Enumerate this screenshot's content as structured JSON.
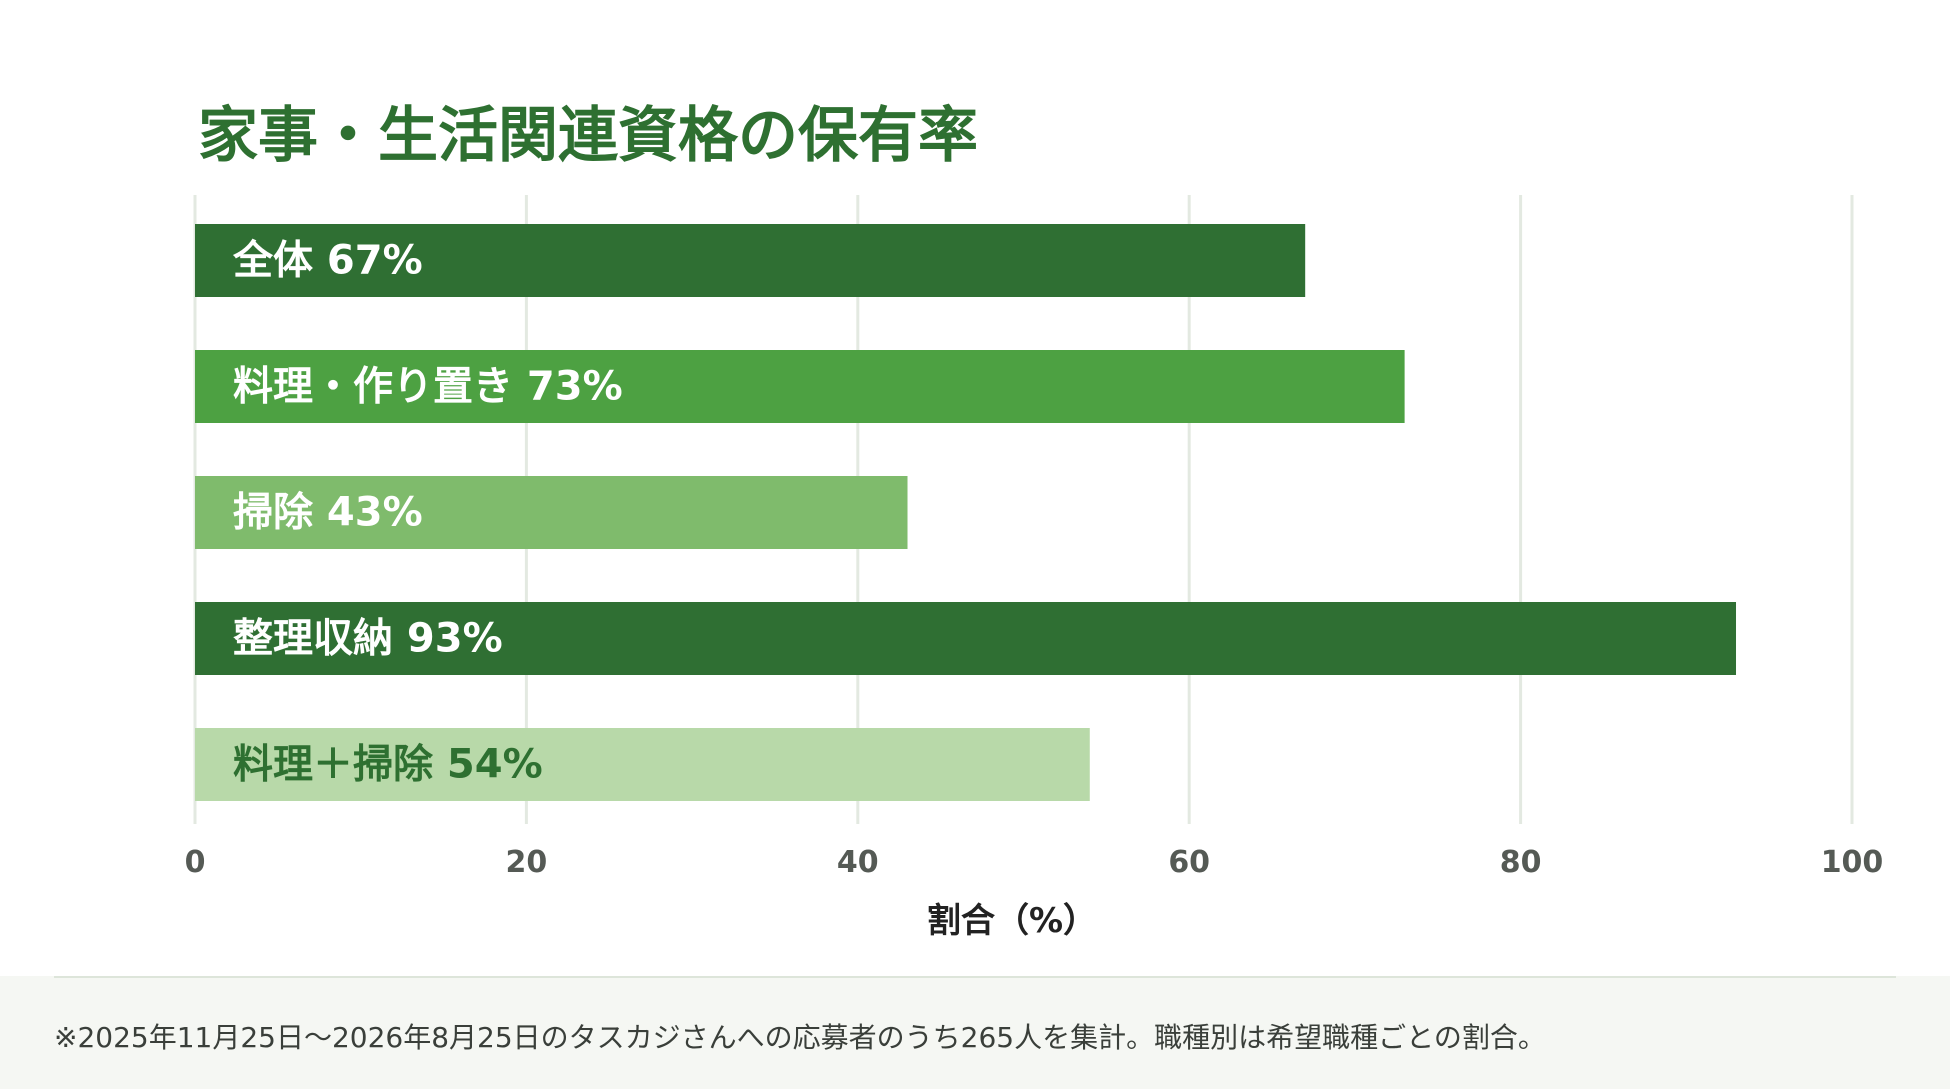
{
  "chart_data": {
    "type": "bar",
    "orientation": "horizontal",
    "title": "家事・生活関連資格の保有率",
    "xlabel": "割合（%）",
    "ylabel": "",
    "xlim": [
      0,
      100
    ],
    "xticks": [
      0,
      20,
      40,
      60,
      80,
      100
    ],
    "grid": true,
    "legend": "none",
    "categories": [
      "全体",
      "料理・作り置き",
      "掃除",
      "整理収納",
      "料理＋掃除"
    ],
    "values": [
      67,
      73,
      43,
      93,
      54
    ],
    "value_suffix": "%",
    "colors": [
      "#2f6f33",
      "#4da142",
      "#7fbb6c",
      "#2f6f33",
      "#b8d9a9"
    ],
    "label_colors": [
      "#ffffff",
      "#ffffff",
      "#ffffff",
      "#ffffff",
      "#2e7031"
    ]
  },
  "footnote": "※2025年11月25日〜2026年8月25日のタスカジさんへの応募者のうち265人を集計。職種別は希望職種ごとの割合。"
}
